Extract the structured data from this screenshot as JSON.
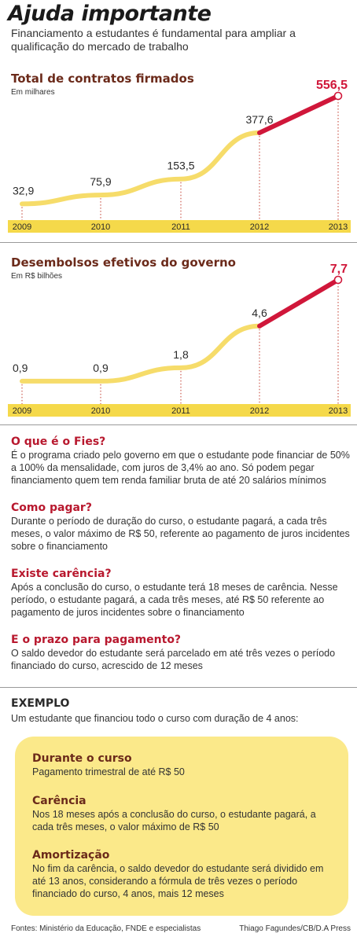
{
  "header": {
    "title": "Ajuda importante",
    "subtitle": "Financiamento a estudantes é fundamental para ampliar a qualificação do mercado de trabalho"
  },
  "colors": {
    "line_main": "#f6dc6a",
    "line_highlight": "#d0173a",
    "axis_band": "#f5d94a",
    "title_brown": "#6b2a1a",
    "question_red": "#b8182e",
    "box_yellow": "#fbe98a"
  },
  "chart_data": [
    {
      "type": "line",
      "title": "Total de contratos firmados",
      "unit": "Em milhares",
      "categories": [
        "2009",
        "2010",
        "2011",
        "2012",
        "2013"
      ],
      "series": [
        {
          "values": [
            32.9,
            75.9,
            153.5,
            377.6,
            556.5
          ]
        }
      ],
      "value_labels": [
        "32,9",
        "75,9",
        "153,5",
        "377,6",
        "556,5"
      ],
      "highlight_segment": [
        "2012",
        "2013"
      ],
      "ylim": [
        0,
        556.5
      ],
      "grid": "vertical-dotted"
    },
    {
      "type": "line",
      "title": "Desembolsos efetivos do governo",
      "unit": "Em R$ bilhões",
      "categories": [
        "2009",
        "2010",
        "2011",
        "2012",
        "2013"
      ],
      "series": [
        {
          "values": [
            0.9,
            0.9,
            1.8,
            4.6,
            7.7
          ]
        }
      ],
      "value_labels": [
        "0,9",
        "0,9",
        "1,8",
        "4,6",
        "7,7"
      ],
      "highlight_segment": [
        "2012",
        "2013"
      ],
      "ylim": [
        0,
        7.7
      ],
      "grid": "vertical-dotted"
    }
  ],
  "faq": [
    {
      "q": "O que é o Fies?",
      "a": "É o programa criado pelo governo em que o estudante pode financiar de 50% a 100% da mensalidade, com juros de 3,4% ao ano. Só podem pegar financiamento quem tem renda familiar bruta de até 20 salários mínimos"
    },
    {
      "q": "Como pagar?",
      "a": "Durante o período de duração do curso, o estudante pagará, a cada três meses, o valor máximo de R$ 50, referente ao pagamento de juros incidentes sobre o financiamento"
    },
    {
      "q": "Existe carência?",
      "a": "Após a conclusão do curso, o estudante terá 18 meses de carência. Nesse período, o estudante pagará, a cada três meses, até R$ 50 referente ao pagamento de juros incidentes sobre o financiamento"
    },
    {
      "q": "E o prazo para pagamento?",
      "a": "O saldo devedor do estudante será parcelado em até três vezes o período financiado do curso, acrescido de 12 meses"
    }
  ],
  "example": {
    "label": "EXEMPLO",
    "intro": "Um estudante que financiou todo o curso com duração de 4 anos:",
    "items": [
      {
        "title": "Durante o curso",
        "text": "Pagamento trimestral de até R$ 50"
      },
      {
        "title": "Carência",
        "text": "Nos 18 meses após a conclusão do curso, o estudante pagará, a cada três meses, o valor máximo de R$ 50"
      },
      {
        "title": "Amortização",
        "text": "No fim da carência, o saldo devedor do estudante será dividido em até 13 anos, considerando a fórmula de três vezes o período financiado do curso, 4 anos, mais 12 meses"
      }
    ]
  },
  "footer": {
    "sources": "Fontes: Ministério da Educação, FNDE e especialistas",
    "credit": "Thiago Fagundes/CB/D.A Press"
  }
}
